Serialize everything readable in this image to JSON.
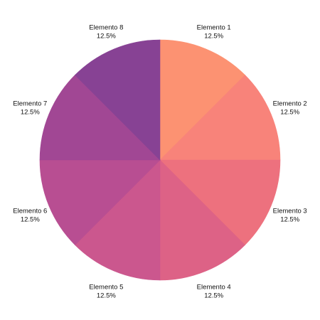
{
  "chart_data": {
    "type": "pie",
    "title": "",
    "start_angle_deg": 0,
    "direction": "clockwise",
    "slices": [
      {
        "label": "Elemento 1",
        "value": 12.5,
        "percent_label": "12.5%",
        "color": "#fc9272"
      },
      {
        "label": "Elemento 2",
        "value": 12.5,
        "percent_label": "12.5%",
        "color": "#f8837a"
      },
      {
        "label": "Elemento 3",
        "value": 12.5,
        "percent_label": "12.5%",
        "color": "#ed717e"
      },
      {
        "label": "Elemento 4",
        "value": 12.5,
        "percent_label": "12.5%",
        "color": "#dd6286"
      },
      {
        "label": "Elemento 5",
        "value": 12.5,
        "percent_label": "12.5%",
        "color": "#cb578e"
      },
      {
        "label": "Elemento 6",
        "value": 12.5,
        "percent_label": "12.5%",
        "color": "#b84e92"
      },
      {
        "label": "Elemento 7",
        "value": 12.5,
        "percent_label": "12.5%",
        "color": "#a14794"
      },
      {
        "label": "Elemento 8",
        "value": 12.5,
        "percent_label": "12.5%",
        "color": "#874294"
      }
    ]
  }
}
